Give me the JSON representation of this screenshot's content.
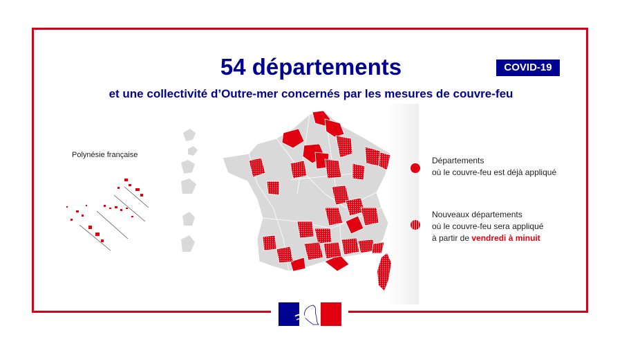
{
  "header": {
    "title": "54 départements",
    "subtitle": "et une collectivité d’Outre-mer concernés par les mesures de couvre-feu",
    "badge": "COVID-19"
  },
  "map": {
    "inset_label": "Polynésie française",
    "colors": {
      "curfew_applied": "#e1000f",
      "new_curfew": "#e1000f",
      "other": "#d9d9d9",
      "frame": "#d9001b",
      "navy": "#000091"
    }
  },
  "legend": {
    "applied": {
      "line1": "Départements",
      "line2": "où le couvre-feu est déjà appliqué"
    },
    "new": {
      "line1": "Nouveaux départements",
      "line2": "où le couvre-feu sera appliqué",
      "line3_prefix": "à partir de ",
      "line3_highlight": "vendredi à minuit"
    }
  },
  "logo": {
    "icon": "marianne-logo"
  }
}
